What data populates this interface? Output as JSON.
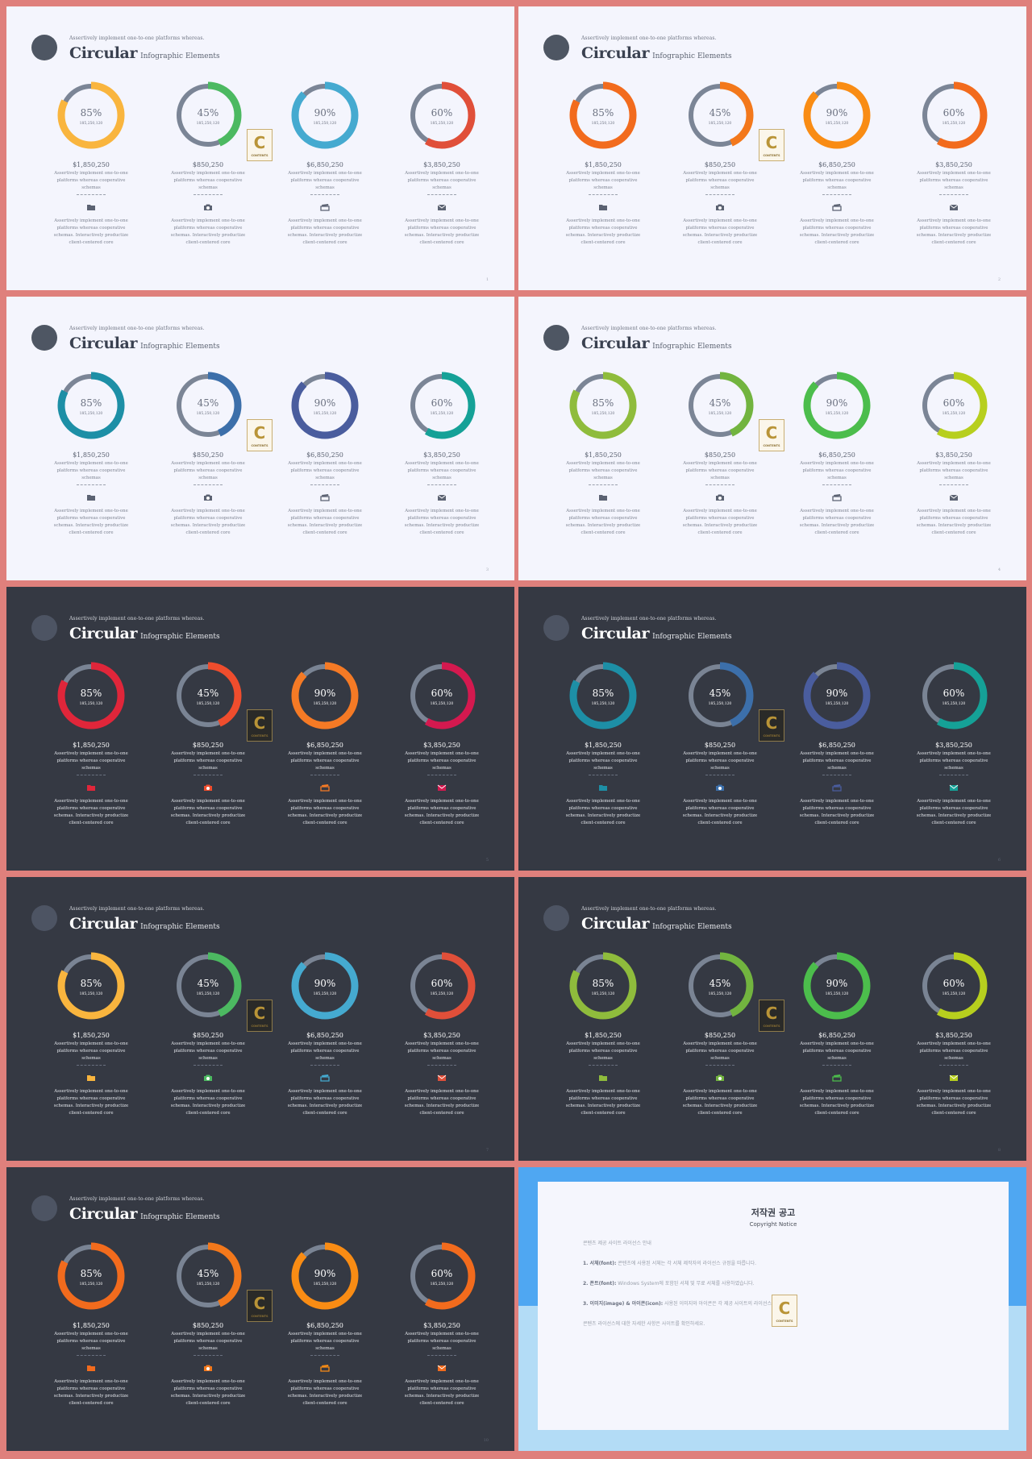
{
  "template": {
    "subtitle": "Assertively implement one-to-one platforms whereas.",
    "title": "Circular",
    "title_small": "Infographic Elements",
    "logo_letter": "C",
    "logo_text": "CONTENTS",
    "columns": [
      {
        "percent": "85%",
        "number": "185,250,120",
        "money": "$1,850,250",
        "desc1": "Assertively implement one-to-one platforms whereas cooperative schemas",
        "desc2": "Assertively implement one-to-one platforms whereas cooperative schemas. Interactively productize client-centered core",
        "icon": "folder-icon"
      },
      {
        "percent": "45%",
        "number": "185,250,120",
        "money": "$850,250",
        "desc1": "Assertively implement one-to-one platforms whereas cooperative schemas",
        "desc2": "Assertively implement one-to-one platforms whereas cooperative schemas. Interactively productize client-centered core",
        "icon": "camera-icon"
      },
      {
        "percent": "90%",
        "number": "185,250,120",
        "money": "$6,850,250",
        "desc1": "Assertively implement one-to-one platforms whereas cooperative schemas",
        "desc2": "Assertively implement one-to-one platforms whereas cooperative schemas. Interactively productize client-centered core",
        "icon": "ticket-icon"
      },
      {
        "percent": "60%",
        "number": "185,250,120",
        "money": "$3,850,250",
        "desc1": "Assertively implement one-to-one platforms whereas cooperative schemas",
        "desc2": "Assertively implement one-to-one platforms whereas cooperative schemas. Interactively productize client-centered core",
        "icon": "envelope-icon"
      }
    ],
    "progress": [
      0.85,
      0.45,
      0.9,
      0.6
    ]
  },
  "slides": [
    {
      "theme": "light",
      "page": "1",
      "colors": [
        "#f9b53e",
        "#4cb961",
        "#45aad0",
        "#e04f39"
      ]
    },
    {
      "theme": "light",
      "page": "2",
      "colors": [
        "#f26b1d",
        "#f3781b",
        "#f98c14",
        "#f26b1d"
      ]
    },
    {
      "theme": "light",
      "page": "3",
      "colors": [
        "#1d8fa6",
        "#3c6faa",
        "#4a5d9e",
        "#15a197"
      ]
    },
    {
      "theme": "light",
      "page": "4",
      "colors": [
        "#8fbc3c",
        "#72b43f",
        "#4cbd4c",
        "#b7cf1e"
      ]
    },
    {
      "theme": "dark",
      "page": "5",
      "colors": [
        "#e0263a",
        "#ef4d2d",
        "#f57a25",
        "#d4194f"
      ]
    },
    {
      "theme": "dark",
      "page": "6",
      "colors": [
        "#1d8fa6",
        "#3c6faa",
        "#4a5d9e",
        "#15a197"
      ]
    },
    {
      "theme": "dark",
      "page": "7",
      "colors": [
        "#f9b53e",
        "#4cb961",
        "#45aad0",
        "#e04f39"
      ]
    },
    {
      "theme": "dark",
      "page": "8",
      "colors": [
        "#8fbc3c",
        "#72b43f",
        "#4cbd4c",
        "#b7cf1e"
      ]
    },
    {
      "theme": "dark",
      "page": "10",
      "colors": [
        "#f26b1d",
        "#f3781b",
        "#f98c14",
        "#f26b1d"
      ]
    }
  ],
  "copyright": {
    "title": "저작권 공고",
    "subtitle": "Copyright Notice",
    "intro": "콘텐츠 제공 사이트 라이선스 안내",
    "item1_head": "1. 서체(font):",
    "item1": "콘텐츠에 사용된 서체는 각 서체 제작자의 라이선스 규정을 따릅니다.",
    "item2_head": "2. 폰트(font):",
    "item2": "Windows System에 포함된 서체 및 무료 서체를 사용하였습니다.",
    "item3_head": "3. 이미지(image) & 아이콘(icon):",
    "item3": "사용된 이미지와 아이콘은 각 제공 사이트의 라이선스를 따릅니다.",
    "outro": "콘텐츠 라이선스에 대한 자세한 사항은 사이트를 확인하세요."
  },
  "colors": {
    "background": "#df807c",
    "light_bg": "#f4f5fd",
    "dark_bg": "#353943",
    "ring_track": "#788293"
  }
}
